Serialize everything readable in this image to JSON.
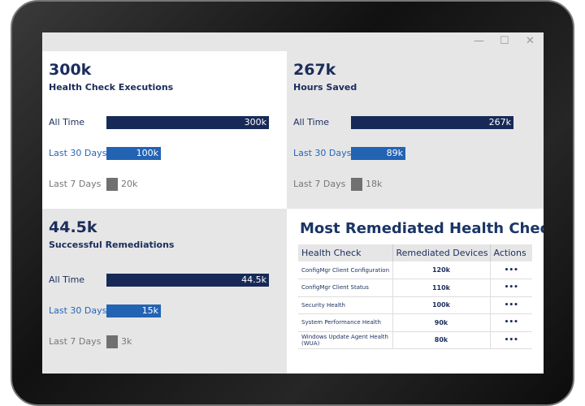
{
  "window": {
    "minimize": "—",
    "maximize": "☐",
    "close": "✕"
  },
  "labels": {
    "all_time": "All Time",
    "last_30": "Last 30 Days",
    "last_7": "Last 7 Days"
  },
  "colors": {
    "all_time": "#172a57",
    "last_30": "#2363b4",
    "last_7": "#707070"
  },
  "cards": [
    {
      "value": "300k",
      "title": "Health Check Executions",
      "all_time": "300k",
      "last_30": "100k",
      "last_7": "20k",
      "fractions": [
        1,
        0.333,
        0.067
      ]
    },
    {
      "value": "267k",
      "title": "Hours Saved",
      "all_time": "267k",
      "last_30": "89k",
      "last_7": "18k",
      "fractions": [
        1,
        0.333,
        0.067
      ]
    },
    {
      "value": "44.5k",
      "title": "Successful Remediations",
      "all_time": "44.5k",
      "last_30": "15k",
      "last_7": "3k",
      "fractions": [
        1,
        0.337,
        0.067
      ]
    }
  ],
  "table": {
    "title": "Most Remediated Health Checks",
    "headers": [
      "Health Check",
      "Remediated Devices",
      "Actions"
    ],
    "rows": [
      {
        "name": "ConfigMgr Client Configuration",
        "devices": "120k",
        "actions": "•••"
      },
      {
        "name": "ConfigMgr Client Status",
        "devices": "110k",
        "actions": "•••"
      },
      {
        "name": "Security Health",
        "devices": "100k",
        "actions": "•••"
      },
      {
        "name": "System Performance Health",
        "devices": "90k",
        "actions": "•••"
      },
      {
        "name": "Windows Update Agent Health (WUA)",
        "devices": "80k",
        "actions": "•••"
      }
    ]
  }
}
